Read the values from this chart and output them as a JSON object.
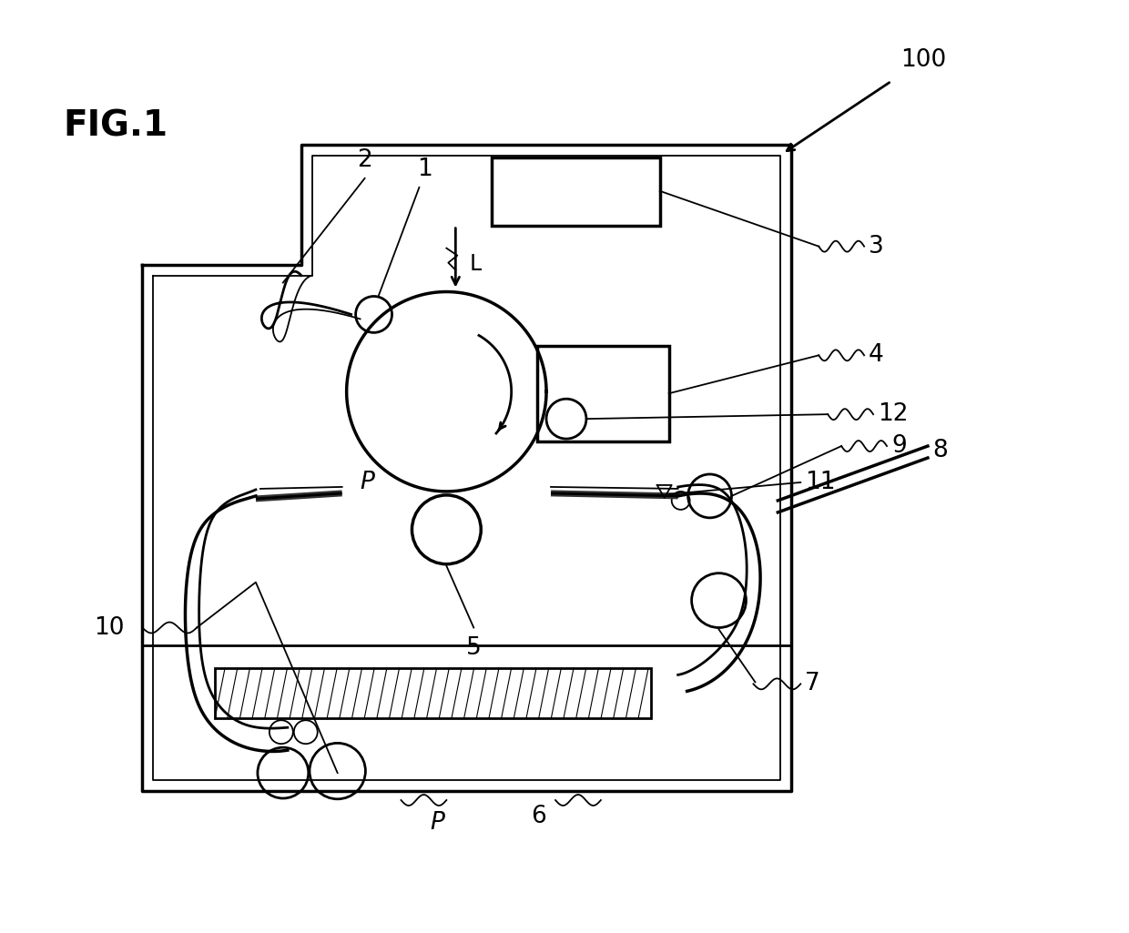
{
  "bg_color": "#ffffff",
  "line_color": "#000000",
  "fig_width": 12.4,
  "fig_height": 10.25,
  "dpi": 100,
  "lw": 2.0,
  "lw_thin": 1.3,
  "lw_thick": 2.5,
  "labels": {
    "fig_title": "FIG.1",
    "n100": "100",
    "n1": "1",
    "n2": "2",
    "n3": "3",
    "n4": "4",
    "n5": "5",
    "n6": "6",
    "n7": "7",
    "n8": "8",
    "n9": "9",
    "n10": "10",
    "n11": "11",
    "n12": "12",
    "nL": "L",
    "nP1": "P",
    "nP2": "P"
  }
}
